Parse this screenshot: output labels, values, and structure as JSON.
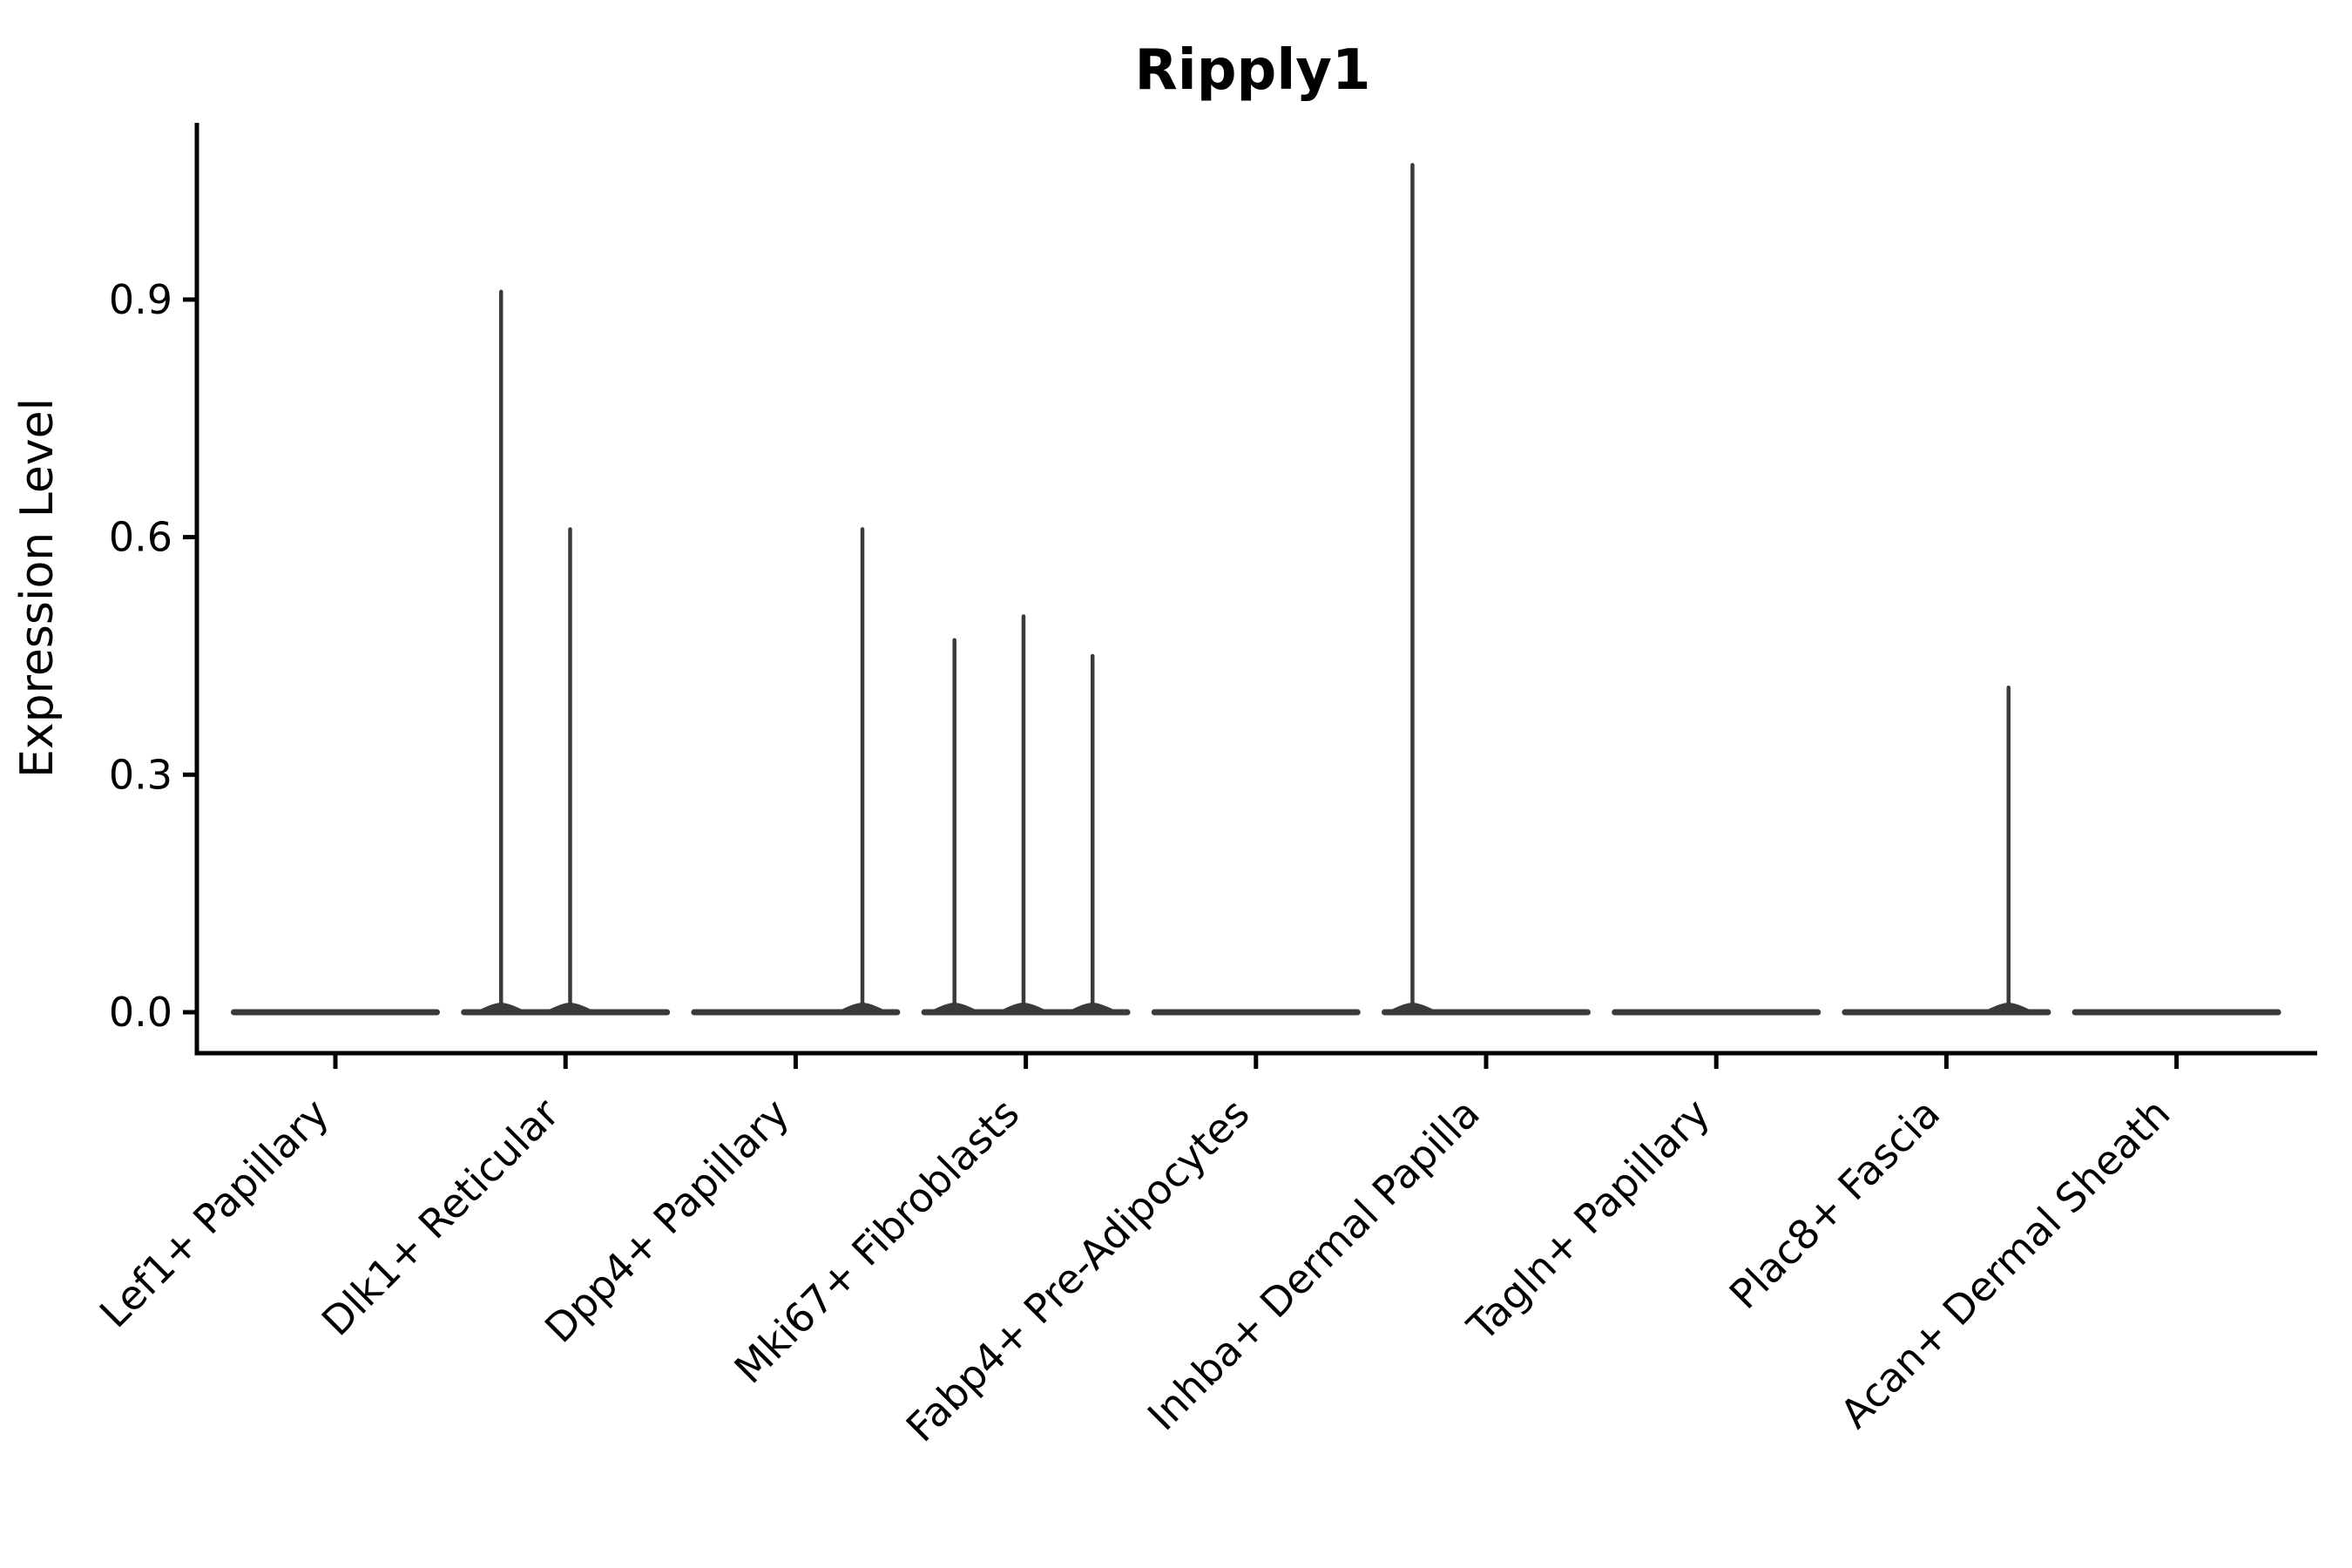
{
  "figure": {
    "background": "#ffffff"
  },
  "chart_data": {
    "type": "violin",
    "title": "Ripply1",
    "xlabel": "",
    "ylabel": "Expression Level",
    "grid": false,
    "legend": "none",
    "ylim": [
      -0.05,
      1.12
    ],
    "y_ticks": [
      {
        "value": 0.0,
        "label": "0.0"
      },
      {
        "value": 0.3,
        "label": "0.3"
      },
      {
        "value": 0.6,
        "label": "0.6"
      },
      {
        "value": 0.9,
        "label": "0.9"
      }
    ],
    "categories": [
      "Lef1+ Papillary",
      "Dlk1+ Reticular",
      "Dpp4+ Papillary",
      "Mki67+ Fibroblasts",
      "Fabp4+ Pre-Adipocytes",
      "Inhba+ Dermal Papilla",
      "Tagln+ Papillary",
      "Plac8+ Fascia",
      "Acan+ Dermal Sheath"
    ],
    "violins": [
      {
        "category": "Lef1+ Papillary",
        "base_at_zero": true,
        "spikes": []
      },
      {
        "category": "Dlk1+ Reticular",
        "base_at_zero": true,
        "spikes": [
          {
            "offset_frac": -0.28,
            "value": 0.91
          },
          {
            "offset_frac": 0.02,
            "value": 0.61
          }
        ]
      },
      {
        "category": "Dpp4+ Papillary",
        "base_at_zero": true,
        "spikes": [
          {
            "offset_frac": 0.29,
            "value": 0.61
          }
        ]
      },
      {
        "category": "Mki67+ Fibroblasts",
        "base_at_zero": true,
        "spikes": [
          {
            "offset_frac": -0.31,
            "value": 0.47
          },
          {
            "offset_frac": -0.01,
            "value": 0.5
          },
          {
            "offset_frac": 0.29,
            "value": 0.45
          }
        ]
      },
      {
        "category": "Fabp4+ Pre-Adipocytes",
        "base_at_zero": true,
        "spikes": []
      },
      {
        "category": "Inhba+ Dermal Papilla",
        "base_at_zero": true,
        "spikes": [
          {
            "offset_frac": -0.32,
            "value": 1.07
          }
        ]
      },
      {
        "category": "Tagln+ Papillary",
        "base_at_zero": true,
        "spikes": []
      },
      {
        "category": "Plac8+ Fascia",
        "base_at_zero": true,
        "spikes": [
          {
            "offset_frac": 0.27,
            "value": 0.41
          }
        ]
      },
      {
        "category": "Acan+ Dermal Sheath",
        "base_at_zero": true,
        "spikes": []
      }
    ],
    "style": {
      "violin_color": "#3a3a3a",
      "axis_color": "#000000",
      "text_color": "#000000",
      "title_bold": true
    }
  }
}
